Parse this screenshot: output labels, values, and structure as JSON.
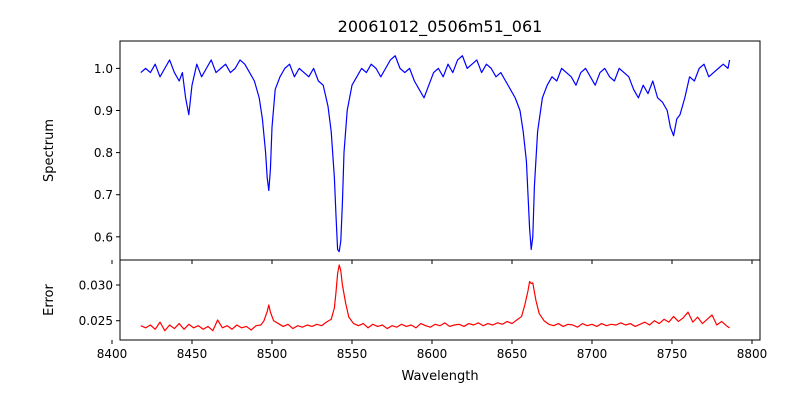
{
  "chart_data": [
    {
      "type": "line",
      "title": "20061012_0506m51_061",
      "ylabel": "Spectrum",
      "xlabel": "",
      "xlim": [
        8405,
        8805
      ],
      "ylim": [
        0.545,
        1.065
      ],
      "xticks": [
        8400,
        8450,
        8500,
        8550,
        8600,
        8650,
        8700,
        8750,
        8800
      ],
      "yticks": [
        0.6,
        0.7,
        0.8,
        0.9,
        1.0
      ],
      "ytick_labels": [
        "0.6",
        "0.7",
        "0.8",
        "0.9",
        "1.0"
      ],
      "grid": false,
      "series": [
        {
          "color": "#0000ff",
          "x": [
            8418,
            8421,
            8424,
            8427,
            8430,
            8433,
            8436,
            8439,
            8442,
            8444,
            8446,
            8448,
            8450,
            8453,
            8456,
            8459,
            8462,
            8465,
            8468,
            8471,
            8474,
            8477,
            8480,
            8483,
            8486,
            8489,
            8492,
            8494,
            8496,
            8497,
            8498,
            8499,
            8500,
            8502,
            8505,
            8508,
            8511,
            8514,
            8517,
            8520,
            8523,
            8526,
            8529,
            8532,
            8535,
            8537,
            8539,
            8540,
            8541,
            8542,
            8543,
            8544,
            8545,
            8547,
            8550,
            8553,
            8556,
            8559,
            8562,
            8565,
            8568,
            8571,
            8574,
            8577,
            8580,
            8583,
            8586,
            8589,
            8592,
            8595,
            8598,
            8601,
            8604,
            8607,
            8610,
            8613,
            8616,
            8619,
            8622,
            8625,
            8628,
            8631,
            8634,
            8637,
            8640,
            8643,
            8646,
            8649,
            8652,
            8655,
            8657,
            8659,
            8660,
            8661,
            8662,
            8663,
            8664,
            8666,
            8669,
            8672,
            8675,
            8678,
            8681,
            8684,
            8687,
            8690,
            8693,
            8696,
            8699,
            8702,
            8705,
            8708,
            8711,
            8714,
            8717,
            8720,
            8723,
            8726,
            8729,
            8732,
            8735,
            8738,
            8741,
            8744,
            8747,
            8749,
            8751,
            8753,
            8755,
            8758,
            8761,
            8764,
            8767,
            8770,
            8773,
            8776,
            8779,
            8782,
            8785,
            8786
          ],
          "y": [
            0.99,
            1.0,
            0.99,
            1.01,
            0.98,
            1.0,
            1.02,
            0.99,
            0.97,
            0.99,
            0.93,
            0.89,
            0.96,
            1.01,
            0.98,
            1.0,
            1.02,
            0.99,
            1.0,
            1.01,
            0.99,
            1.0,
            1.02,
            1.01,
            0.99,
            0.97,
            0.93,
            0.88,
            0.8,
            0.74,
            0.71,
            0.76,
            0.86,
            0.95,
            0.98,
            1.0,
            1.01,
            0.98,
            1.0,
            0.99,
            0.98,
            1.0,
            0.97,
            0.96,
            0.91,
            0.85,
            0.74,
            0.65,
            0.57,
            0.565,
            0.59,
            0.68,
            0.8,
            0.9,
            0.96,
            0.98,
            1.0,
            0.99,
            1.01,
            1.0,
            0.98,
            1.0,
            1.02,
            1.03,
            1.0,
            0.99,
            1.0,
            0.97,
            0.95,
            0.93,
            0.96,
            0.99,
            1.0,
            0.98,
            1.01,
            0.99,
            1.02,
            1.03,
            1.0,
            1.01,
            1.02,
            0.99,
            1.01,
            1.0,
            0.98,
            0.99,
            0.97,
            0.95,
            0.93,
            0.9,
            0.85,
            0.78,
            0.7,
            0.62,
            0.57,
            0.6,
            0.72,
            0.85,
            0.93,
            0.96,
            0.98,
            0.97,
            1.0,
            0.99,
            0.98,
            0.96,
            0.99,
            1.0,
            0.98,
            0.96,
            0.99,
            1.0,
            0.98,
            0.97,
            1.0,
            0.99,
            0.98,
            0.95,
            0.93,
            0.96,
            0.94,
            0.97,
            0.93,
            0.92,
            0.9,
            0.86,
            0.84,
            0.88,
            0.89,
            0.93,
            0.98,
            0.97,
            1.0,
            1.01,
            0.98,
            0.99,
            1.0,
            1.01,
            1.0,
            1.02
          ]
        }
      ]
    },
    {
      "type": "line",
      "title": "",
      "xlabel": "Wavelength",
      "ylabel": "Error",
      "xlim": [
        8405,
        8805
      ],
      "ylim": [
        0.0223,
        0.0335
      ],
      "xticks": [
        8400,
        8450,
        8500,
        8550,
        8600,
        8650,
        8700,
        8750,
        8800
      ],
      "xtick_labels": [
        "8400",
        "8450",
        "8500",
        "8550",
        "8600",
        "8650",
        "8700",
        "8750",
        "8800"
      ],
      "yticks": [
        0.025,
        0.03
      ],
      "ytick_labels": [
        "0.025",
        "0.030"
      ],
      "grid": false,
      "series": [
        {
          "color": "#ff0000",
          "x": [
            8418,
            8421,
            8424,
            8427,
            8430,
            8433,
            8436,
            8439,
            8442,
            8445,
            8448,
            8451,
            8454,
            8457,
            8460,
            8463,
            8466,
            8469,
            8472,
            8475,
            8478,
            8481,
            8484,
            8487,
            8490,
            8493,
            8495,
            8497,
            8498,
            8499,
            8501,
            8504,
            8507,
            8510,
            8513,
            8516,
            8519,
            8522,
            8525,
            8528,
            8531,
            8534,
            8537,
            8539,
            8540,
            8541,
            8542,
            8543,
            8544,
            8546,
            8548,
            8551,
            8554,
            8557,
            8560,
            8563,
            8566,
            8569,
            8572,
            8575,
            8578,
            8581,
            8584,
            8587,
            8590,
            8593,
            8596,
            8599,
            8602,
            8605,
            8608,
            8611,
            8614,
            8617,
            8620,
            8623,
            8626,
            8629,
            8632,
            8635,
            8638,
            8641,
            8644,
            8647,
            8650,
            8653,
            8656,
            8658,
            8660,
            8661,
            8662,
            8663,
            8664,
            8665,
            8667,
            8670,
            8673,
            8676,
            8679,
            8682,
            8685,
            8688,
            8691,
            8694,
            8697,
            8700,
            8703,
            8706,
            8709,
            8712,
            8715,
            8718,
            8721,
            8724,
            8727,
            8730,
            8733,
            8736,
            8739,
            8742,
            8745,
            8748,
            8751,
            8754,
            8757,
            8760,
            8763,
            8766,
            8769,
            8772,
            8775,
            8778,
            8781,
            8784,
            8786
          ],
          "y": [
            0.0243,
            0.024,
            0.0244,
            0.0238,
            0.0248,
            0.0236,
            0.0244,
            0.0239,
            0.0246,
            0.0238,
            0.0245,
            0.024,
            0.0243,
            0.0238,
            0.0242,
            0.0236,
            0.0251,
            0.024,
            0.0243,
            0.0238,
            0.0244,
            0.024,
            0.0242,
            0.0237,
            0.0243,
            0.0244,
            0.025,
            0.0263,
            0.0272,
            0.0262,
            0.025,
            0.0246,
            0.0242,
            0.0245,
            0.0239,
            0.0243,
            0.0241,
            0.0244,
            0.0242,
            0.0245,
            0.0243,
            0.0248,
            0.0252,
            0.0268,
            0.029,
            0.0316,
            0.0328,
            0.032,
            0.03,
            0.0275,
            0.0255,
            0.0246,
            0.0243,
            0.0246,
            0.024,
            0.0245,
            0.0242,
            0.0244,
            0.0239,
            0.0243,
            0.0241,
            0.0245,
            0.0242,
            0.0244,
            0.024,
            0.0246,
            0.0243,
            0.0241,
            0.0245,
            0.0243,
            0.0247,
            0.0242,
            0.0244,
            0.0245,
            0.0242,
            0.0246,
            0.0244,
            0.0247,
            0.0243,
            0.0246,
            0.0244,
            0.0247,
            0.0245,
            0.0249,
            0.0246,
            0.0251,
            0.0256,
            0.0272,
            0.0292,
            0.0305,
            0.0302,
            0.0303,
            0.029,
            0.0278,
            0.026,
            0.025,
            0.0245,
            0.0243,
            0.0246,
            0.0242,
            0.0245,
            0.0244,
            0.0241,
            0.0246,
            0.0243,
            0.0245,
            0.0242,
            0.0246,
            0.0243,
            0.0245,
            0.0244,
            0.0247,
            0.0244,
            0.0246,
            0.0242,
            0.0245,
            0.0248,
            0.0244,
            0.025,
            0.0246,
            0.0252,
            0.0248,
            0.0256,
            0.0249,
            0.0254,
            0.0262,
            0.0248,
            0.0255,
            0.0246,
            0.0252,
            0.0258,
            0.0244,
            0.0249,
            0.0243,
            0.024
          ]
        }
      ]
    }
  ]
}
